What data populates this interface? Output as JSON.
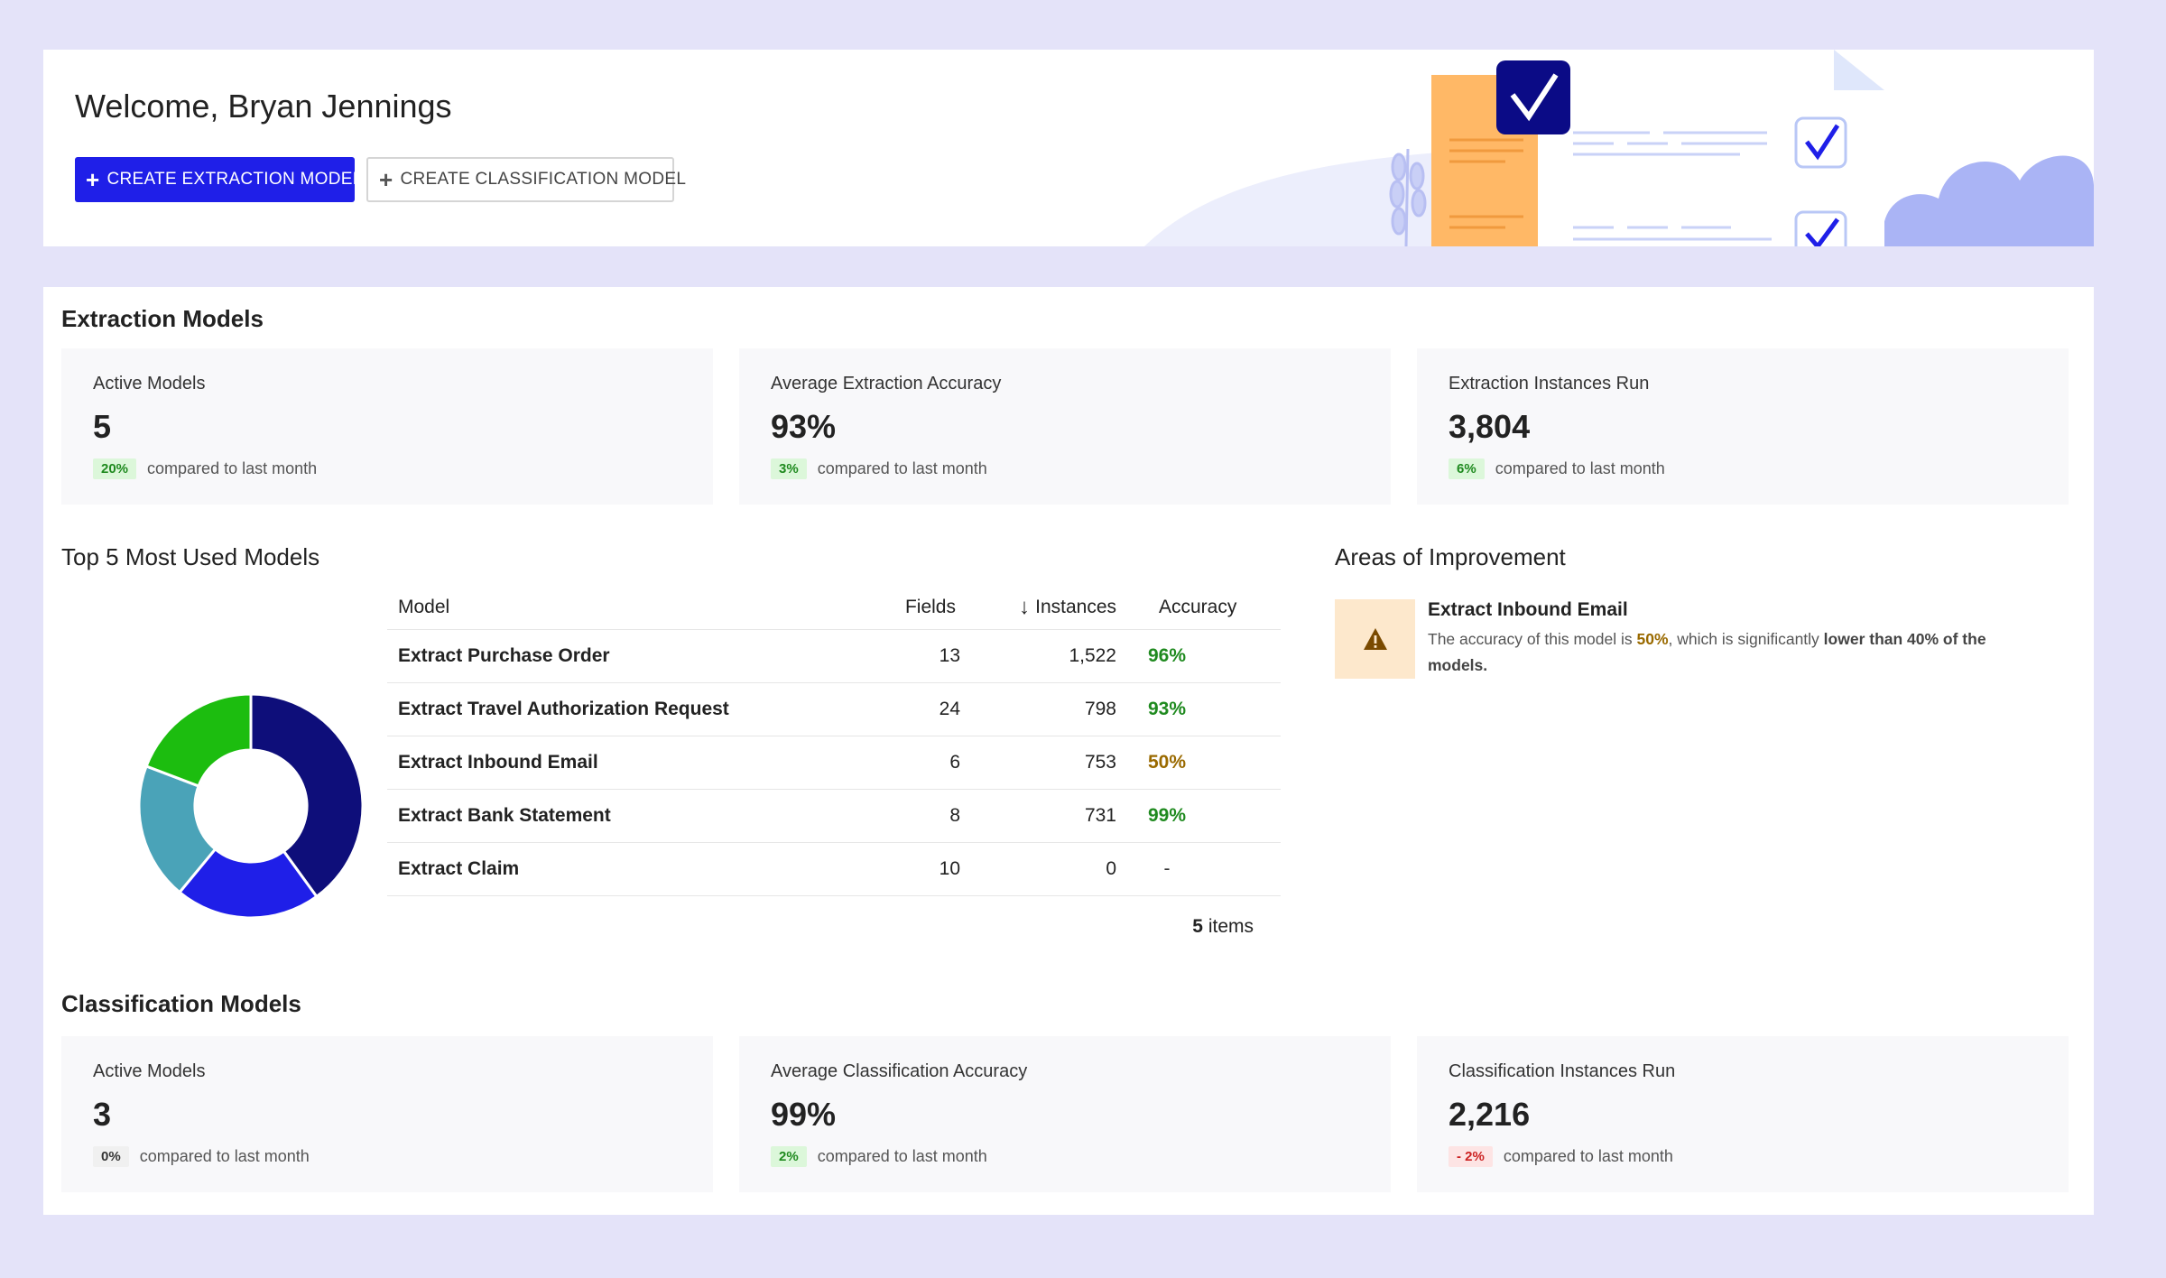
{
  "header": {
    "welcome": "Welcome, Bryan Jennings",
    "create_extraction_label": "Create Extraction Model",
    "create_classification_label": "Create Classification Model"
  },
  "extraction": {
    "title": "Extraction Models",
    "stats": [
      {
        "label": "Active Models",
        "value": "5",
        "change": "20%",
        "change_type": "positive",
        "compare_text": "compared to last month"
      },
      {
        "label": "Average Extraction Accuracy",
        "value": "93%",
        "change": "3%",
        "change_type": "positive",
        "compare_text": "compared to last month"
      },
      {
        "label": "Extraction Instances Run",
        "value": "3,804",
        "change": "6%",
        "change_type": "positive",
        "compare_text": "compared to last month"
      }
    ]
  },
  "top_models": {
    "title": "Top 5 Most Used Models",
    "columns": {
      "model": "Model",
      "fields": "Fields",
      "instances": "Instances",
      "accuracy": "Accuracy"
    },
    "rows": [
      {
        "model": "Extract Purchase Order",
        "fields": "13",
        "instances": "1,522",
        "accuracy": "96%",
        "accuracy_level": "good"
      },
      {
        "model": "Extract Travel Authorization Request",
        "fields": "24",
        "instances": "798",
        "accuracy": "93%",
        "accuracy_level": "good"
      },
      {
        "model": "Extract Inbound Email",
        "fields": "6",
        "instances": "753",
        "accuracy": "50%",
        "accuracy_level": "warn"
      },
      {
        "model": "Extract Bank Statement",
        "fields": "8",
        "instances": "731",
        "accuracy": "99%",
        "accuracy_level": "good"
      },
      {
        "model": "Extract Claim",
        "fields": "10",
        "instances": "0",
        "accuracy": "-",
        "accuracy_level": "none"
      }
    ],
    "items_count": "5",
    "items_label": "items",
    "donut_colors": [
      "#0e0e7a",
      "#1f1fe8",
      "#4aa3b8",
      "#1cbd0f"
    ]
  },
  "improvement": {
    "title": "Areas of Improvement",
    "item_title": "Extract Inbound Email",
    "desc_prefix": "The accuracy of this model is ",
    "desc_value": "50%",
    "desc_middle": ", which is significantly ",
    "desc_bold": "lower than 40% of the models."
  },
  "classification": {
    "title": "Classification Models",
    "stats": [
      {
        "label": "Active Models",
        "value": "3",
        "change": "0%",
        "change_type": "neutral",
        "compare_text": "compared to last month"
      },
      {
        "label": "Average Classification Accuracy",
        "value": "99%",
        "change": "2%",
        "change_type": "positive",
        "compare_text": "compared to last month"
      },
      {
        "label": "Classification Instances Run",
        "value": "2,216",
        "change": "- 2%",
        "change_type": "negative",
        "compare_text": "compared to last month"
      }
    ]
  },
  "colors": {
    "primary": "#1f1fe8",
    "background": "#e4e3f9",
    "positive": "#1f8a1f",
    "warning": "#9a6a00"
  }
}
